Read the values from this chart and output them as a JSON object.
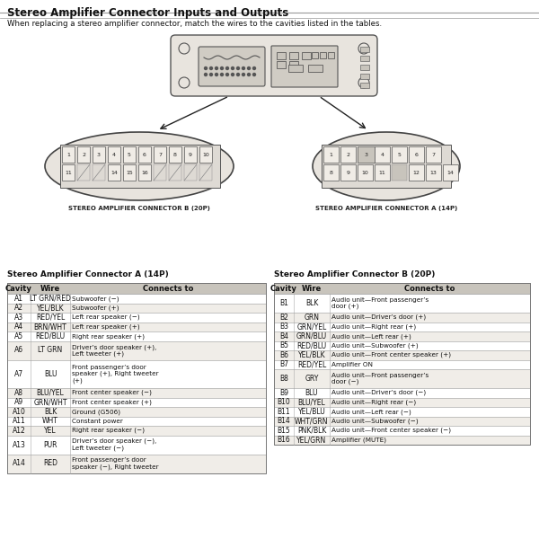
{
  "title": "Stereo Amplifier Connector Inputs and Outputs",
  "subtitle": "When replacing a stereo amplifier connector, match the wires to the cavities listed in the tables.",
  "bg_color": "#ffffff",
  "header_bg": "#d8d4cc",
  "connector_a_label": "STEREO AMPLIFIER CONNECTOR A (14P)",
  "connector_b_label": "STEREO AMPLIFIER CONNECTOR B (20P)",
  "table_a_title": "Stereo Amplifier Connector A (14P)",
  "table_b_title": "Stereo Amplifier Connector B (20P)",
  "table_headers": [
    "Cavity",
    "Wire",
    "Connects to"
  ],
  "table_a_rows": [
    [
      "A1",
      "LT GRN/RED",
      "Subwoofer (−)"
    ],
    [
      "A2",
      "YEL/BLK",
      "Subwoofer (+)"
    ],
    [
      "A3",
      "RED/YEL",
      "Left rear speaker (−)"
    ],
    [
      "A4",
      "BRN/WHT",
      "Left rear speaker (+)"
    ],
    [
      "A5",
      "RED/BLU",
      "Right rear speaker (+)"
    ],
    [
      "A6",
      "LT GRN",
      "Driver’s door speaker (+),\nLeft tweeter (+)"
    ],
    [
      "A7",
      "BLU",
      "Front passenger’s door\nspeaker (+), Right tweeter\n(+)"
    ],
    [
      "A8",
      "BLU/YEL",
      "Front center speaker (−)"
    ],
    [
      "A9",
      "GRN/WHT",
      "Front center speaker (+)"
    ],
    [
      "A10",
      "BLK",
      "Ground (G506)"
    ],
    [
      "A11",
      "WHT",
      "Constant power"
    ],
    [
      "A12",
      "YEL",
      "Right rear speaker (−)"
    ],
    [
      "A13",
      "PUR",
      "Driver’s door speaker (−),\nLeft tweeter (−)"
    ],
    [
      "A14",
      "RED",
      "Front passenger’s door\nspeaker (−), Right tweeter"
    ]
  ],
  "table_b_rows": [
    [
      "B1",
      "BLK",
      "Audio unit—Front passenger’s\ndoor (+)"
    ],
    [
      "B2",
      "GRN",
      "Audio unit—Driver’s door (+)"
    ],
    [
      "B3",
      "GRN/YEL",
      "Audio unit—Right rear (+)"
    ],
    [
      "B4",
      "GRN/BLU",
      "Audio unit—Left rear (+)"
    ],
    [
      "B5",
      "RED/BLU",
      "Audio unit—Subwoofer (+)"
    ],
    [
      "B6",
      "YEL/BLK",
      "Audio unit—Front center speaker (+)"
    ],
    [
      "B7",
      "RED/YEL",
      "Amplifier ON"
    ],
    [
      "B8",
      "GRY",
      "Audio unit—Front passenger’s\ndoor (−)"
    ],
    [
      "B9",
      "BLU",
      "Audio unit—Driver’s door (−)"
    ],
    [
      "B10",
      "BLU/YEL",
      "Audio unit—Right rear (−)"
    ],
    [
      "B11",
      "YEL/BLU",
      "Audio unit—Left rear (−)"
    ],
    [
      "B14",
      "WHT/GRN",
      "Audio unit—Subwoofer (−)"
    ],
    [
      "B15",
      "PNK/BLK",
      "Audio unit—Front center speaker (−)"
    ],
    [
      "B16",
      "YEL/GRN",
      "Amplifier (MUTE)"
    ]
  ]
}
